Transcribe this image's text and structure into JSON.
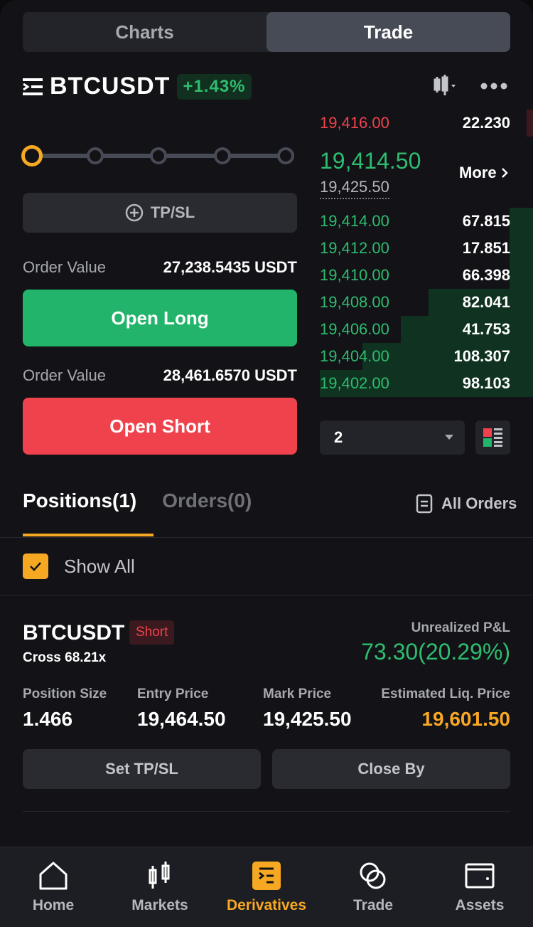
{
  "tabs": [
    {
      "label": "Charts",
      "active": false
    },
    {
      "label": "Trade",
      "active": true
    }
  ],
  "symbol": {
    "name": "BTCUSDT",
    "change": "+1.43%",
    "icons": [
      "menu-icon",
      "candlestick-dropdown-icon",
      "more-icon"
    ]
  },
  "leverage_slider": {
    "steps": 5,
    "selected_index": 0,
    "accent": "#f7a823"
  },
  "tpsl_label": "TP/SL",
  "long": {
    "order_value_label": "Order Value",
    "order_value": "27,238.5435 USDT",
    "button": "Open Long",
    "color": "#22b46a"
  },
  "short": {
    "order_value_label": "Order Value",
    "order_value": "28,461.6570 USDT",
    "button": "Open Short",
    "color": "#f0424c"
  },
  "orderbook": {
    "asks": [
      {
        "price": "19,416.00",
        "qty": "22.230",
        "depth": 0.03
      }
    ],
    "last_price": "19,414.50",
    "mark_price": "19,425.50",
    "more_label": "More",
    "bids": [
      {
        "price": "19,414.00",
        "qty": "67.815",
        "depth": 0.11
      },
      {
        "price": "19,412.00",
        "qty": "17.851",
        "depth": 0.11
      },
      {
        "price": "19,410.00",
        "qty": "66.398",
        "depth": 0.11
      },
      {
        "price": "19,408.00",
        "qty": "82.041",
        "depth": 0.49
      },
      {
        "price": "19,406.00",
        "qty": "41.753",
        "depth": 0.62
      },
      {
        "price": "19,404.00",
        "qty": "108.307",
        "depth": 0.8
      },
      {
        "price": "19,402.00",
        "qty": "98.103",
        "depth": 1.0
      }
    ],
    "precision": "2"
  },
  "positions_tabs": {
    "positions": "Positions(1)",
    "orders": "Orders(0)",
    "all_orders": "All Orders"
  },
  "show_all": {
    "label": "Show All",
    "checked": true
  },
  "position": {
    "symbol": "BTCUSDT",
    "side": "Short",
    "margin": "Cross 68.21x",
    "pnl_label": "Unrealized P&L",
    "pnl": "73.30(20.29%)",
    "fields": [
      {
        "label": "Position Size",
        "value": "1.466"
      },
      {
        "label": "Entry Price",
        "value": "19,464.50"
      },
      {
        "label": "Mark Price",
        "value": "19,425.50"
      },
      {
        "label": "Estimated Liq. Price",
        "value": "19,601.50"
      }
    ],
    "set_tpsl": "Set TP/SL",
    "close_by": "Close By"
  },
  "nav": [
    {
      "label": "Home",
      "icon": "home-icon"
    },
    {
      "label": "Markets",
      "icon": "markets-icon"
    },
    {
      "label": "Derivatives",
      "icon": "derivatives-icon",
      "active": true
    },
    {
      "label": "Trade",
      "icon": "trade-icon"
    },
    {
      "label": "Assets",
      "icon": "wallet-icon"
    }
  ]
}
